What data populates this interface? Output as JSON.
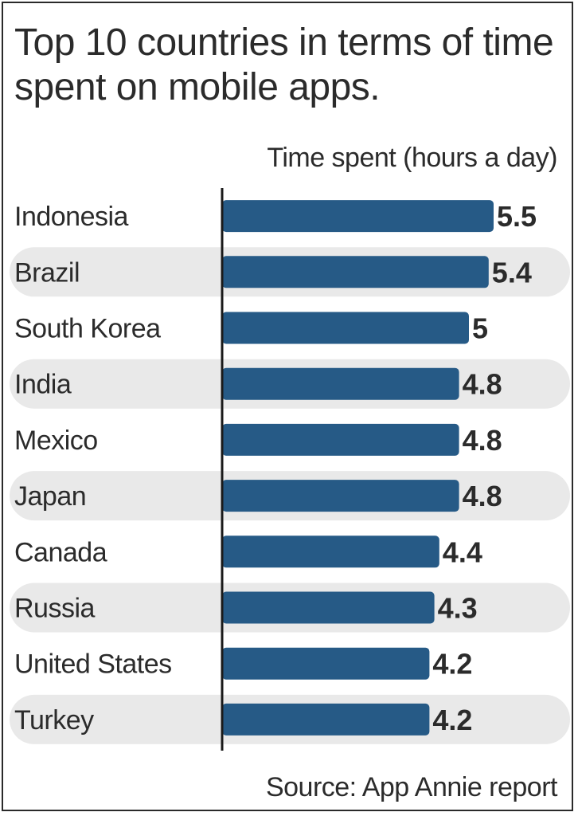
{
  "chart_data": {
    "type": "bar",
    "orientation": "horizontal",
    "title": "Top 10 countries in terms of time spent on mobile apps.",
    "xlabel": "Time spent (hours a day)",
    "ylabel": "",
    "categories": [
      "Indonesia",
      "Brazil",
      "South Korea",
      "India",
      "Mexico",
      "Japan",
      "Canada",
      "Russia",
      "United States",
      "Turkey"
    ],
    "values": [
      5.5,
      5.4,
      5,
      4.8,
      4.8,
      4.8,
      4.4,
      4.3,
      4.2,
      4.2
    ],
    "value_labels": [
      "5.5",
      "5.4",
      "5",
      "4.8",
      "4.8",
      "4.8",
      "4.4",
      "4.3",
      "4.2",
      "4.2"
    ],
    "xlim": [
      0,
      6.3
    ],
    "grid": false,
    "legend": "none",
    "source": "Source: App Annie report",
    "colors": {
      "bar": "#265a86",
      "row_band": "#e9e9e9",
      "text": "#2b2b2b",
      "axis": "#1a1a1a"
    }
  }
}
